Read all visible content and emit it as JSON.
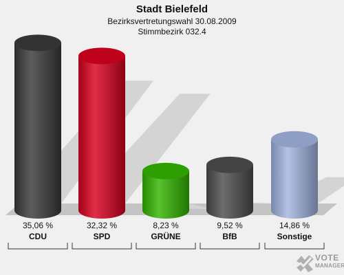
{
  "title": "Stadt Bielefeld",
  "subtitle1": "Bezirksvertretungswahl 30.08.2009",
  "subtitle2": "Stimmbezirk 032.4",
  "chart_data": {
    "type": "bar",
    "title": "Stadt Bielefeld",
    "categories": [
      "CDU",
      "SPD",
      "GRÜNE",
      "BfB",
      "Sonstige"
    ],
    "values": [
      35.06,
      32.32,
      8.23,
      9.52,
      14.86
    ],
    "value_labels": [
      "35,06 %",
      "32,32 %",
      "8,23 %",
      "9,52 %",
      "14,86 %"
    ],
    "colors": [
      "#3a3a3a",
      "#d9001f",
      "#33b500",
      "#4d4d4d",
      "#a3b4e0"
    ],
    "grid": false,
    "legend": "none"
  },
  "logo": {
    "line1": "VOTE",
    "line2": "MANAGER"
  }
}
